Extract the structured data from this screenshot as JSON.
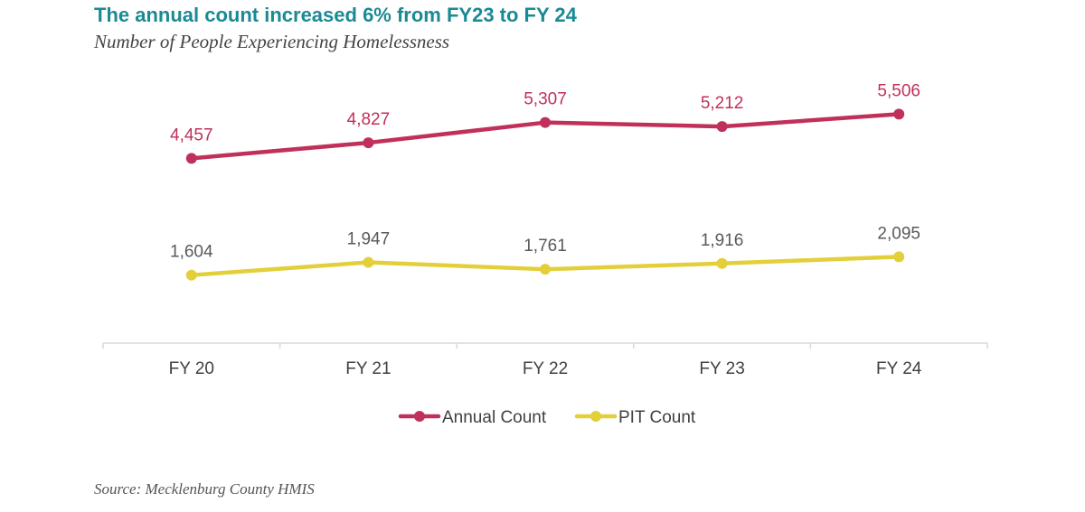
{
  "title": "The annual count increased 6% from FY23 to FY 24",
  "subtitle": "Number of People Experiencing Homelessness",
  "source": "Source: Mecklenburg County HMIS",
  "chart_data": {
    "type": "line",
    "categories": [
      "FY 20",
      "FY 21",
      "FY 22",
      "FY 23",
      "FY 24"
    ],
    "series": [
      {
        "name": "Annual Count",
        "values": [
          4457,
          4827,
          5307,
          5212,
          5506
        ],
        "labels": [
          "4,457",
          "4,827",
          "5,307",
          "5,212",
          "5,506"
        ],
        "color": "#c0305a"
      },
      {
        "name": "PIT Count",
        "values": [
          1604,
          1947,
          1761,
          1916,
          2095
        ],
        "labels": [
          "1,604",
          "1,947",
          "1,761",
          "1,916",
          "2,095"
        ],
        "color": "#e3cf3a"
      }
    ],
    "grid": false,
    "legend_position": "bottom",
    "colors": {
      "axis": "#d9d9d9",
      "tick_label": "#404040",
      "data_label": "#595959"
    }
  }
}
